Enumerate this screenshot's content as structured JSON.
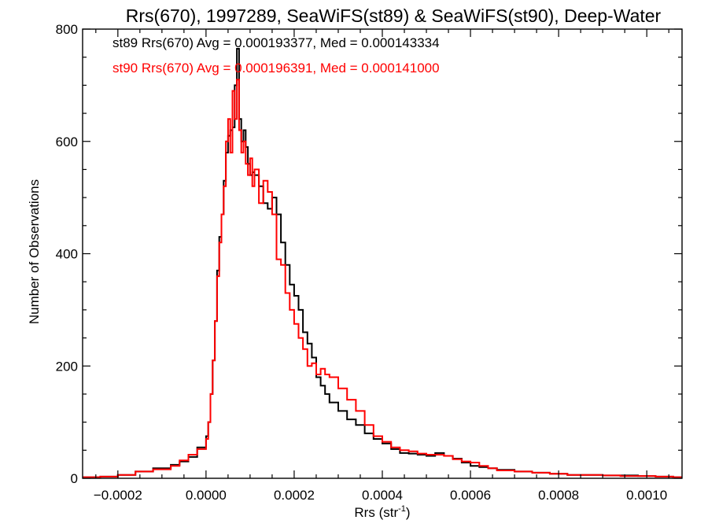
{
  "chart_data": {
    "type": "histogram-line",
    "title": "Rrs(670), 1997289, SeaWiFS(st89) & SeaWiFS(st90), Deep-Water",
    "xlabel": "Rrs (str",
    "xlabel_sup": "-1",
    "xlabel_end": ")",
    "ylabel": "Number of Observations",
    "xlim": [
      -0.00028,
      0.00108
    ],
    "ylim": [
      0,
      800
    ],
    "x_ticks": [
      {
        "value": -0.0002,
        "label": "−0.0002"
      },
      {
        "value": 0.0,
        "label": "0.0000"
      },
      {
        "value": 0.0002,
        "label": "0.0002"
      },
      {
        "value": 0.0004,
        "label": "0.0004"
      },
      {
        "value": 0.0006,
        "label": "0.0006"
      },
      {
        "value": 0.0008,
        "label": "0.0008"
      },
      {
        "value": 0.001,
        "label": "0.0010"
      }
    ],
    "y_ticks": [
      {
        "value": 0,
        "label": "0"
      },
      {
        "value": 200,
        "label": "200"
      },
      {
        "value": 400,
        "label": "400"
      },
      {
        "value": 600,
        "label": "600"
      },
      {
        "value": 800,
        "label": "800"
      }
    ],
    "annotations": [
      {
        "text": "st89 Rrs(670) Avg = 0.000193377, Med = 0.000143334",
        "color": "#000000"
      },
      {
        "text": "st90 Rrs(670) Avg = 0.000196391, Med = 0.000141000",
        "color": "#ff0000"
      }
    ],
    "series": [
      {
        "id": "st89",
        "color": "#000000",
        "points": [
          [
            -0.00028,
            2
          ],
          [
            -0.00024,
            3
          ],
          [
            -0.0002,
            6
          ],
          [
            -0.00016,
            12
          ],
          [
            -0.00012,
            18
          ],
          [
            -8e-05,
            24
          ],
          [
            -6e-05,
            30
          ],
          [
            -4e-05,
            38
          ],
          [
            -2e-05,
            55
          ],
          [
            0.0,
            75
          ],
          [
            5e-06,
            100
          ],
          [
            1e-05,
            150
          ],
          [
            1.5e-05,
            210
          ],
          [
            2e-05,
            280
          ],
          [
            2.5e-05,
            370
          ],
          [
            3e-05,
            430
          ],
          [
            3.5e-05,
            470
          ],
          [
            4e-05,
            530
          ],
          [
            4.5e-05,
            580
          ],
          [
            5e-05,
            610
          ],
          [
            5.5e-05,
            620
          ],
          [
            6e-05,
            625
          ],
          [
            6.5e-05,
            700
          ],
          [
            7e-05,
            765
          ],
          [
            7.5e-05,
            640
          ],
          [
            8e-05,
            600
          ],
          [
            8.5e-05,
            620
          ],
          [
            9e-05,
            590
          ],
          [
            9.5e-05,
            560
          ],
          [
            0.0001,
            540
          ],
          [
            0.000105,
            545
          ],
          [
            0.00011,
            540
          ],
          [
            0.00012,
            520
          ],
          [
            0.00013,
            490
          ],
          [
            0.00014,
            480
          ],
          [
            0.00015,
            500
          ],
          [
            0.00016,
            470
          ],
          [
            0.00017,
            420
          ],
          [
            0.00018,
            380
          ],
          [
            0.00019,
            345
          ],
          [
            0.0002,
            325
          ],
          [
            0.00021,
            300
          ],
          [
            0.00022,
            260
          ],
          [
            0.00023,
            240
          ],
          [
            0.00024,
            215
          ],
          [
            0.00025,
            180
          ],
          [
            0.00026,
            165
          ],
          [
            0.00027,
            150
          ],
          [
            0.00028,
            135
          ],
          [
            0.0003,
            120
          ],
          [
            0.00032,
            105
          ],
          [
            0.00034,
            95
          ],
          [
            0.00036,
            80
          ],
          [
            0.00038,
            70
          ],
          [
            0.0004,
            62
          ],
          [
            0.00042,
            52
          ],
          [
            0.00044,
            45
          ],
          [
            0.00046,
            44
          ],
          [
            0.00048,
            42
          ],
          [
            0.0005,
            40
          ],
          [
            0.00052,
            45
          ],
          [
            0.00054,
            40
          ],
          [
            0.00056,
            35
          ],
          [
            0.00058,
            28
          ],
          [
            0.0006,
            22
          ],
          [
            0.00062,
            20
          ],
          [
            0.00064,
            18
          ],
          [
            0.00066,
            15
          ],
          [
            0.0007,
            12
          ],
          [
            0.00074,
            10
          ],
          [
            0.00078,
            8
          ],
          [
            0.00082,
            6
          ],
          [
            0.00086,
            6
          ],
          [
            0.0009,
            5
          ],
          [
            0.00094,
            5
          ],
          [
            0.00098,
            4
          ],
          [
            0.00102,
            3
          ],
          [
            0.00106,
            2
          ]
        ]
      },
      {
        "id": "st90",
        "color": "#ff0000",
        "points": [
          [
            -0.00028,
            2
          ],
          [
            -0.00024,
            3
          ],
          [
            -0.0002,
            6
          ],
          [
            -0.00016,
            12
          ],
          [
            -0.00012,
            16
          ],
          [
            -8e-05,
            22
          ],
          [
            -6e-05,
            32
          ],
          [
            -4e-05,
            42
          ],
          [
            -2e-05,
            52
          ],
          [
            0.0,
            70
          ],
          [
            5e-06,
            100
          ],
          [
            1e-05,
            150
          ],
          [
            1.5e-05,
            210
          ],
          [
            2e-05,
            280
          ],
          [
            2.5e-05,
            360
          ],
          [
            3e-05,
            420
          ],
          [
            3.5e-05,
            470
          ],
          [
            4e-05,
            520
          ],
          [
            4.5e-05,
            600
          ],
          [
            5e-05,
            640
          ],
          [
            5.5e-05,
            580
          ],
          [
            6e-05,
            690
          ],
          [
            6.5e-05,
            640
          ],
          [
            7e-05,
            710
          ],
          [
            7.5e-05,
            620
          ],
          [
            8e-05,
            580
          ],
          [
            8.5e-05,
            600
          ],
          [
            9e-05,
            560
          ],
          [
            9.5e-05,
            540
          ],
          [
            0.0001,
            570
          ],
          [
            0.000105,
            520
          ],
          [
            0.00011,
            550
          ],
          [
            0.00012,
            490
          ],
          [
            0.00013,
            530
          ],
          [
            0.00014,
            510
          ],
          [
            0.00015,
            470
          ],
          [
            0.00016,
            390
          ],
          [
            0.00017,
            380
          ],
          [
            0.00018,
            330
          ],
          [
            0.00019,
            300
          ],
          [
            0.0002,
            275
          ],
          [
            0.00021,
            250
          ],
          [
            0.00022,
            230
          ],
          [
            0.00023,
            200
          ],
          [
            0.00024,
            205
          ],
          [
            0.00025,
            185
          ],
          [
            0.00026,
            195
          ],
          [
            0.00027,
            185
          ],
          [
            0.00028,
            180
          ],
          [
            0.0003,
            160
          ],
          [
            0.00032,
            140
          ],
          [
            0.00034,
            120
          ],
          [
            0.00036,
            95
          ],
          [
            0.00038,
            75
          ],
          [
            0.0004,
            65
          ],
          [
            0.00042,
            55
          ],
          [
            0.00044,
            50
          ],
          [
            0.00046,
            48
          ],
          [
            0.00048,
            44
          ],
          [
            0.0005,
            42
          ],
          [
            0.00052,
            42
          ],
          [
            0.00054,
            40
          ],
          [
            0.00056,
            34
          ],
          [
            0.00058,
            30
          ],
          [
            0.0006,
            28
          ],
          [
            0.00062,
            22
          ],
          [
            0.00064,
            18
          ],
          [
            0.00066,
            14
          ],
          [
            0.0007,
            12
          ],
          [
            0.00074,
            10
          ],
          [
            0.00078,
            8
          ],
          [
            0.00082,
            6
          ],
          [
            0.00086,
            6
          ],
          [
            0.0009,
            5
          ],
          [
            0.00094,
            4
          ],
          [
            0.00098,
            4
          ],
          [
            0.00102,
            3
          ],
          [
            0.00106,
            2
          ]
        ]
      }
    ]
  }
}
